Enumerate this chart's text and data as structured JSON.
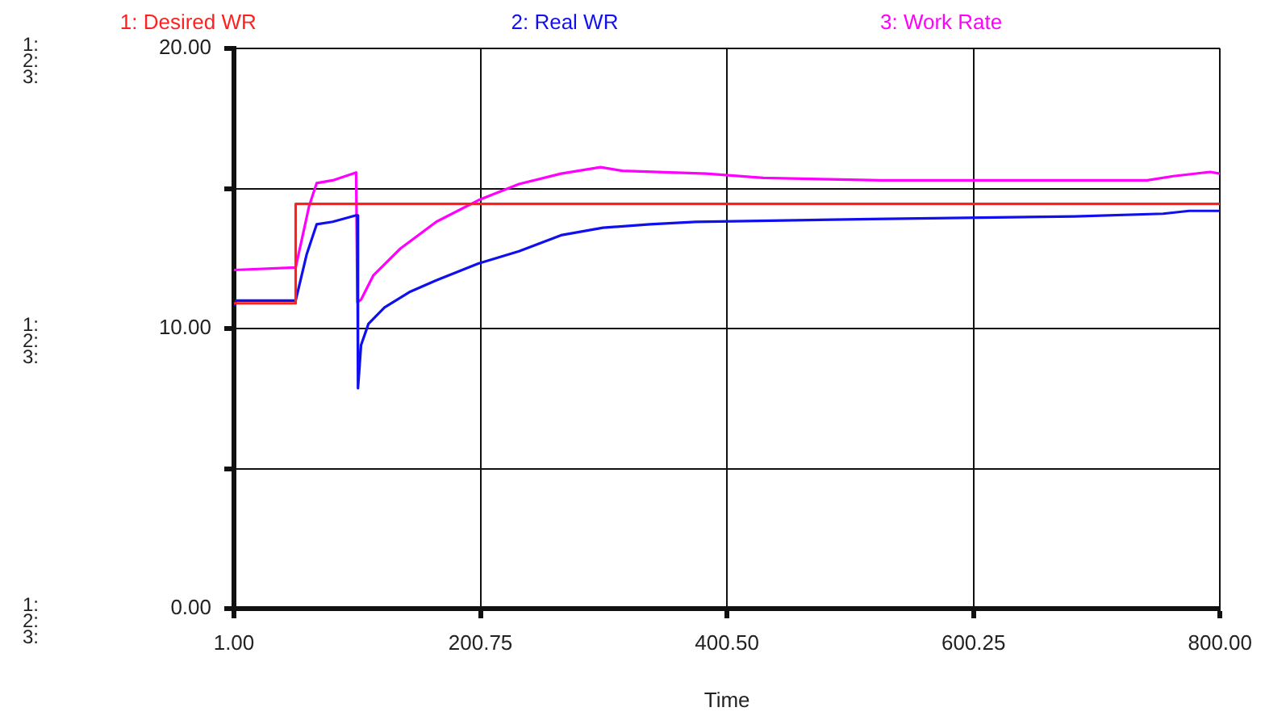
{
  "chart_data": {
    "type": "line",
    "xlabel": "Time",
    "legend": "top",
    "grid": true,
    "marker": "none",
    "line_style": "solid",
    "xlim": [
      1,
      800
    ],
    "xticks": [
      {
        "value": 1,
        "label": "1.00"
      },
      {
        "value": 200.75,
        "label": "200.75"
      },
      {
        "value": 400.5,
        "label": "400.50"
      },
      {
        "value": 600.25,
        "label": "600.25"
      },
      {
        "value": 800,
        "label": "800.00"
      }
    ],
    "ylim": [
      0,
      20
    ],
    "yticks": [
      {
        "value": 0,
        "label": "0.00"
      },
      {
        "value": 5,
        "label": null
      },
      {
        "value": 10,
        "label": "10.00"
      },
      {
        "value": 15,
        "label": null
      },
      {
        "value": 20,
        "label": "20.00"
      }
    ],
    "annotations": [
      "1:",
      "2:",
      "3:"
    ],
    "series": [
      {
        "name": "1: Desired WR",
        "color": "#ff2020",
        "x": [
          1,
          51,
          51,
          800
        ],
        "values": [
          10.9,
          10.9,
          14.45,
          14.45
        ]
      },
      {
        "name": "2: Real WR",
        "color": "#1010ee",
        "x": [
          1,
          3,
          51,
          60,
          68,
          81,
          100,
          101,
          101.5,
          104,
          110,
          123,
          144,
          165,
          199,
          232,
          266,
          300,
          338,
          375,
          518,
          682,
          754,
          775,
          800
        ],
        "values": [
          10.8,
          11.0,
          11.0,
          12.66,
          13.72,
          13.81,
          14.04,
          14.04,
          7.87,
          9.41,
          10.17,
          10.75,
          11.32,
          11.72,
          12.32,
          12.76,
          13.33,
          13.6,
          13.72,
          13.81,
          13.91,
          14.0,
          14.1,
          14.2,
          14.2
        ]
      },
      {
        "name": "3: Work Rate",
        "color": "#ff00ff",
        "x": [
          1,
          51,
          62,
          68,
          81,
          100,
          101,
          104,
          114,
          136,
          165,
          199,
          232,
          266,
          298,
          316,
          384,
          430,
          525,
          741,
          762,
          792,
          800
        ],
        "values": [
          12.09,
          12.18,
          14.39,
          15.19,
          15.29,
          15.57,
          10.94,
          11.03,
          11.9,
          12.86,
          13.81,
          14.58,
          15.16,
          15.53,
          15.76,
          15.63,
          15.53,
          15.38,
          15.29,
          15.29,
          15.44,
          15.59,
          15.53
        ]
      }
    ]
  }
}
